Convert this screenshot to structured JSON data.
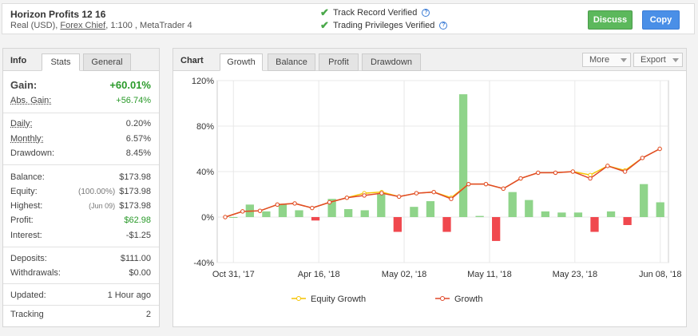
{
  "account": {
    "name": "Horizon Profits 12 16",
    "type_prefix": "Real (USD),",
    "broker": "Forex Chief",
    "details": ", 1:100 , MetaTrader 4"
  },
  "verifications": [
    {
      "label": "Track Record Verified",
      "icon": "check-icon"
    },
    {
      "label": "Trading Privileges Verified",
      "icon": "check-icon"
    }
  ],
  "buttons": {
    "discuss": "Discuss",
    "copy": "Copy"
  },
  "colors": {
    "green": "#5cb85c",
    "blue": "#4a8fe7",
    "bar_green": "#8fd48a",
    "bar_red": "#f0484e",
    "growth": "#e0482a",
    "equity": "#f5c400"
  },
  "info_panel": {
    "title": "Info",
    "tabs": [
      "Stats",
      "General"
    ],
    "gain": {
      "label": "Gain:",
      "value": "+60.01%"
    },
    "abs_gain": {
      "label": "Abs. Gain:",
      "value": "+56.74%"
    },
    "daily": {
      "label": "Daily:",
      "value": "0.20%"
    },
    "monthly": {
      "label": "Monthly:",
      "value": "6.57%"
    },
    "drawdown": {
      "label": "Drawdown:",
      "value": "8.45%"
    },
    "balance": {
      "label": "Balance:",
      "value": "$173.98"
    },
    "equity": {
      "label": "Equity:",
      "pct": "(100.00%)",
      "value": "$173.98"
    },
    "highest": {
      "label": "Highest:",
      "pct": "(Jun 09)",
      "value": "$173.98"
    },
    "profit": {
      "label": "Profit:",
      "value": "$62.98"
    },
    "interest": {
      "label": "Interest:",
      "value": "-$1.25"
    },
    "deposits": {
      "label": "Deposits:",
      "value": "$111.00"
    },
    "withdrawals": {
      "label": "Withdrawals:",
      "value": "$0.00"
    },
    "updated": {
      "label": "Updated:",
      "value": "1 Hour ago"
    },
    "tracking": {
      "label": "Tracking",
      "value": "2"
    }
  },
  "chart_panel": {
    "title": "Chart",
    "tabs": [
      "Growth",
      "Balance",
      "Profit",
      "Drawdown"
    ],
    "more": "More",
    "export": "Export"
  },
  "chart_data": {
    "type": "line",
    "y_tick_labels": [
      "120%",
      "80%",
      "40%",
      "0%",
      "-40%"
    ],
    "y_ticks": [
      120,
      80,
      40,
      0,
      -40
    ],
    "ylim": [
      -40,
      120
    ],
    "x_tick_labels": [
      "Oct 31, '17",
      "Apr 16, '18",
      "May 02, '18",
      "May 11, '18",
      "May 23, '18",
      "Jun 08, '18"
    ],
    "x_tick_index": [
      0,
      5,
      10,
      15,
      20,
      25
    ],
    "bars": [
      0,
      11,
      5,
      11,
      6,
      -3,
      16,
      7,
      6,
      20,
      -13,
      9,
      14,
      -13,
      108,
      1,
      -21,
      22,
      15,
      5,
      4,
      4,
      -13,
      5,
      -7,
      29,
      13
    ],
    "series": [
      {
        "name": "Equity Growth",
        "values": [
          0,
          5,
          5.5,
          11,
          12,
          8,
          13,
          17,
          21,
          22,
          18,
          21,
          22,
          17,
          29,
          29,
          25,
          34,
          39,
          39,
          40,
          37,
          45,
          41,
          52,
          60
        ]
      },
      {
        "name": "Growth",
        "values": [
          0,
          5,
          5.5,
          11,
          12,
          8,
          13,
          17,
          19,
          21,
          18,
          21,
          22,
          16,
          29,
          29,
          25,
          34,
          39,
          39,
          40,
          34,
          45,
          40,
          52,
          60
        ]
      }
    ]
  }
}
